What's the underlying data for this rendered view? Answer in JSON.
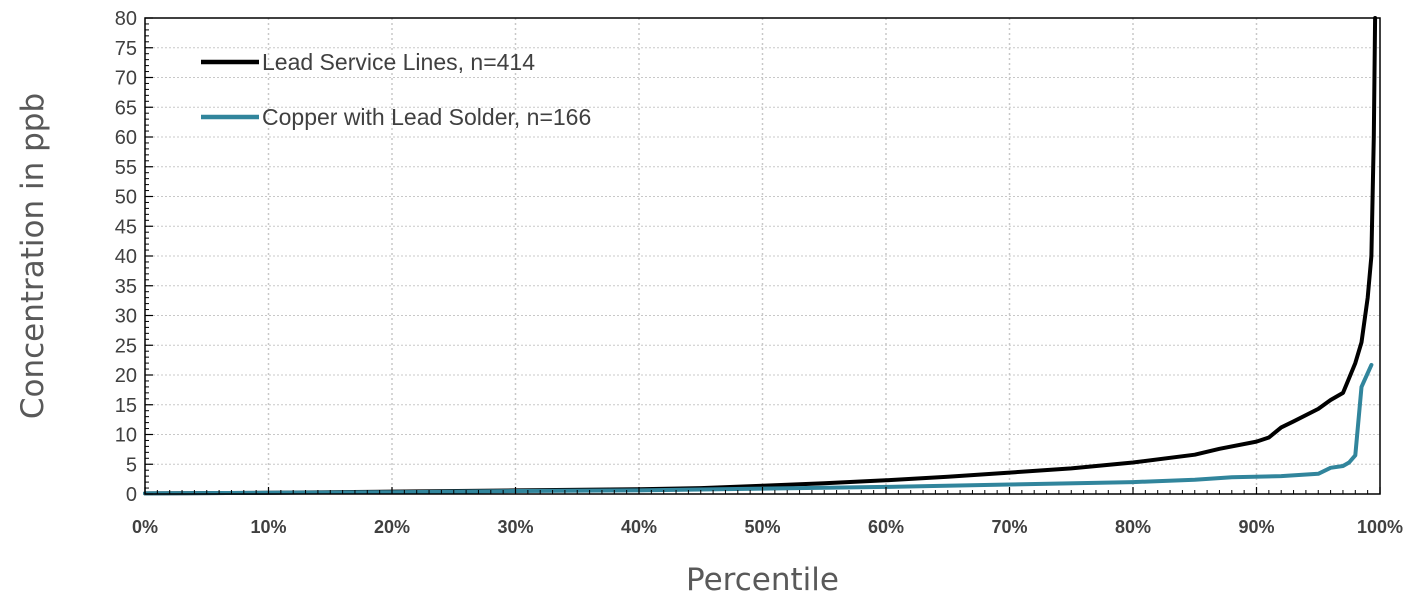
{
  "chart_data": {
    "type": "line",
    "title": "",
    "xlabel": "Percentile",
    "ylabel": "Concentration in ppb",
    "xlim": [
      0,
      100
    ],
    "ylim": [
      0,
      80
    ],
    "x_ticks": [
      0,
      10,
      20,
      30,
      40,
      50,
      60,
      70,
      80,
      90,
      100
    ],
    "x_tick_labels": [
      "0%",
      "10%",
      "20%",
      "30%",
      "40%",
      "50%",
      "60%",
      "70%",
      "80%",
      "90%",
      "100%"
    ],
    "y_ticks": [
      0,
      5,
      10,
      15,
      20,
      25,
      30,
      35,
      40,
      45,
      50,
      55,
      60,
      65,
      70,
      75,
      80
    ],
    "y_tick_labels": [
      "0",
      "5",
      "10",
      "15",
      "20",
      "25",
      "30",
      "35",
      "40",
      "45",
      "50",
      "55",
      "60",
      "65",
      "70",
      "75",
      "80"
    ],
    "grid": "dotted",
    "legend_position": "top-left",
    "series": [
      {
        "name": "Lead Service Lines, n=414",
        "color": "#000000",
        "points": [
          [
            0,
            0.1
          ],
          [
            10,
            0.2
          ],
          [
            20,
            0.4
          ],
          [
            30,
            0.6
          ],
          [
            40,
            0.8
          ],
          [
            45,
            1.0
          ],
          [
            50,
            1.4
          ],
          [
            55,
            1.8
          ],
          [
            60,
            2.3
          ],
          [
            65,
            2.9
          ],
          [
            70,
            3.6
          ],
          [
            75,
            4.3
          ],
          [
            80,
            5.3
          ],
          [
            85,
            6.6
          ],
          [
            87,
            7.6
          ],
          [
            90,
            8.8
          ],
          [
            91,
            9.5
          ],
          [
            92,
            11.2
          ],
          [
            93,
            12.2
          ],
          [
            95,
            14.3
          ],
          [
            96,
            15.8
          ],
          [
            97,
            17.0
          ],
          [
            98,
            22.0
          ],
          [
            98.5,
            25.5
          ],
          [
            99,
            33.0
          ],
          [
            99.3,
            40.0
          ],
          [
            99.5,
            60.0
          ],
          [
            99.6,
            80.0
          ]
        ]
      },
      {
        "name": "Copper with Lead Solder, n=166",
        "color": "#31859C",
        "points": [
          [
            0,
            0.1
          ],
          [
            10,
            0.2
          ],
          [
            20,
            0.3
          ],
          [
            30,
            0.5
          ],
          [
            40,
            0.6
          ],
          [
            50,
            0.9
          ],
          [
            60,
            1.2
          ],
          [
            70,
            1.6
          ],
          [
            80,
            2.0
          ],
          [
            85,
            2.4
          ],
          [
            88,
            2.8
          ],
          [
            92,
            3.0
          ],
          [
            95,
            3.4
          ],
          [
            96,
            4.4
          ],
          [
            97,
            4.7
          ],
          [
            97.5,
            5.3
          ],
          [
            98,
            6.5
          ],
          [
            98.5,
            18.0
          ],
          [
            99.3,
            21.7
          ]
        ]
      }
    ]
  }
}
